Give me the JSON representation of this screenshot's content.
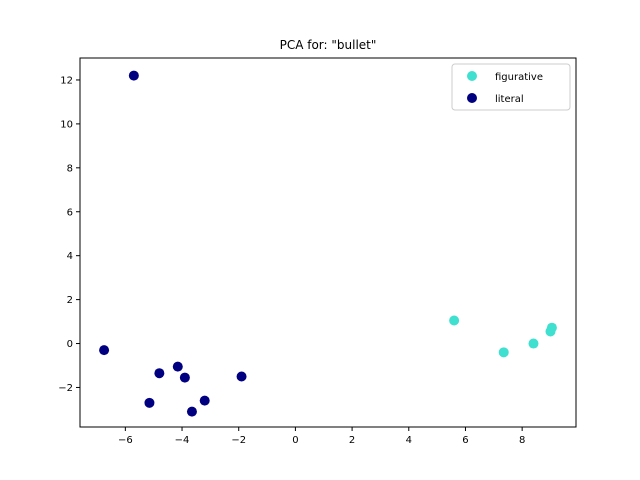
{
  "chart_data": {
    "type": "scatter",
    "title": "PCA for: \"bullet\"",
    "xlabel": "",
    "ylabel": "",
    "xlim": [
      -7.6,
      9.9
    ],
    "ylim": [
      -3.8,
      13.0
    ],
    "xticks": [
      -6,
      -4,
      -2,
      0,
      2,
      4,
      6,
      8
    ],
    "yticks": [
      -2,
      0,
      2,
      4,
      6,
      8,
      10,
      12
    ],
    "xtick_labels": [
      "−6",
      "−4",
      "−2",
      "0",
      "2",
      "4",
      "6",
      "8"
    ],
    "ytick_labels": [
      "−2",
      "0",
      "2",
      "4",
      "6",
      "8",
      "10",
      "12"
    ],
    "grid": false,
    "legend_position": "top-right",
    "series": [
      {
        "name": "figurative",
        "color": "#40e0d0",
        "points": [
          [
            5.6,
            1.05
          ],
          [
            7.35,
            -0.4
          ],
          [
            8.4,
            0.0
          ],
          [
            9.0,
            0.55
          ],
          [
            9.05,
            0.72
          ]
        ]
      },
      {
        "name": "literal",
        "color": "#000080",
        "points": [
          [
            -5.7,
            12.2
          ],
          [
            -6.75,
            -0.3
          ],
          [
            -4.15,
            -1.05
          ],
          [
            -4.8,
            -1.35
          ],
          [
            -3.9,
            -1.55
          ],
          [
            -1.9,
            -1.5
          ],
          [
            -5.15,
            -2.7
          ],
          [
            -3.2,
            -2.6
          ],
          [
            -3.65,
            -3.1
          ]
        ]
      }
    ]
  }
}
